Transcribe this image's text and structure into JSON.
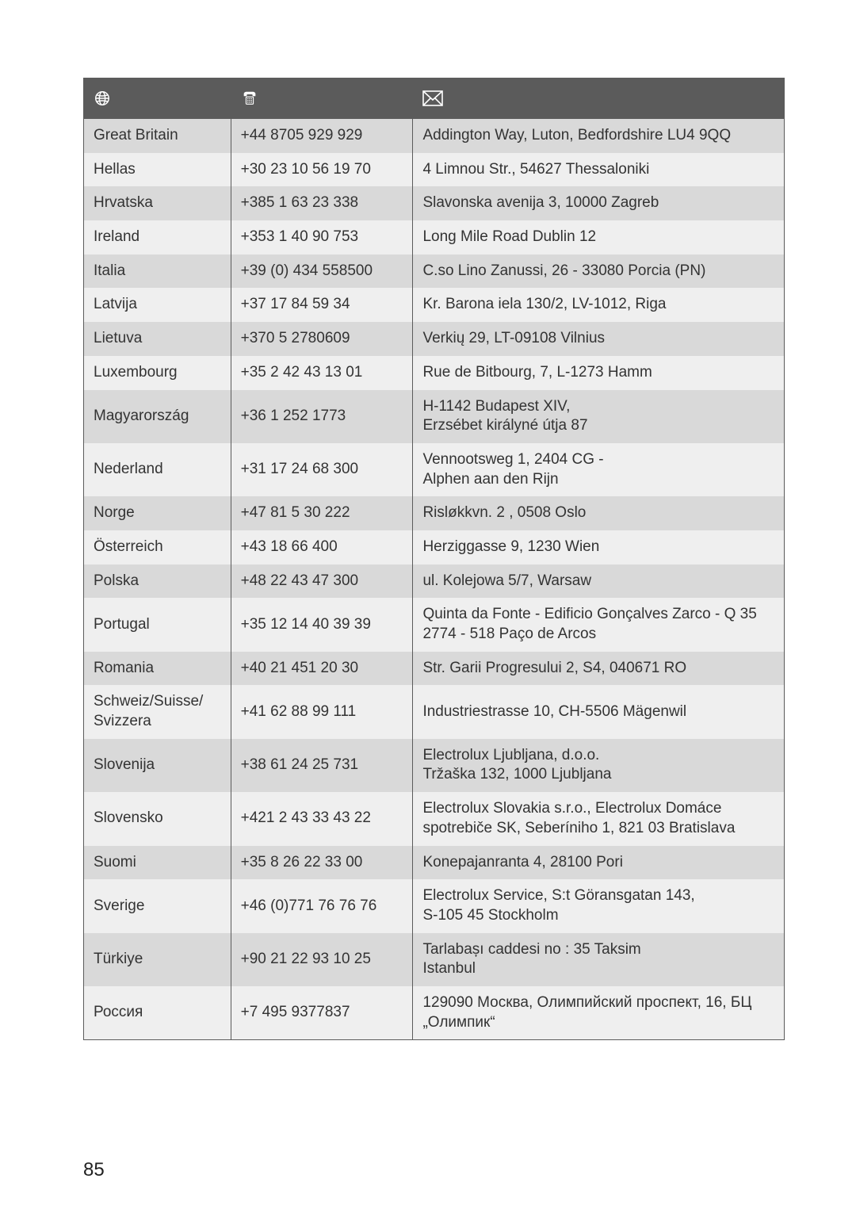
{
  "page_number": "85",
  "colors": {
    "header_bg": "#5b5b5b",
    "header_fg": "#ffffff",
    "row_odd": "#d9d9d9",
    "row_even": "#efefef",
    "text": "#333333",
    "border": "#5b5b5b"
  },
  "header_icons": [
    "globe",
    "phone",
    "envelope"
  ],
  "rows": [
    {
      "country": "Great Britain",
      "phone": "+44 8705 929 929",
      "address": "Addington Way, Luton, Bedfordshire LU4 9QQ"
    },
    {
      "country": "Hellas",
      "phone": "+30 23 10 56 19 70",
      "address": "4 Limnou Str., 54627 Thessaloniki"
    },
    {
      "country": "Hrvatska",
      "phone": "+385 1 63 23 338",
      "address": "Slavonska avenija 3, 10000 Zagreb"
    },
    {
      "country": "Ireland",
      "phone": "+353 1 40 90 753",
      "address": "Long Mile Road Dublin 12"
    },
    {
      "country": "Italia",
      "phone": "+39 (0) 434 558500",
      "address": "C.so Lino Zanussi, 26 - 33080 Porcia (PN)"
    },
    {
      "country": "Latvija",
      "phone": "+37 17 84 59 34",
      "address": "Kr. Barona iela 130/2, LV-1012, Riga"
    },
    {
      "country": "Lietuva",
      "phone": "+370 5 2780609",
      "address": "Verkių 29, LT-09108 Vilnius"
    },
    {
      "country": "Luxembourg",
      "phone": "+35 2 42 43 13 01",
      "address": "Rue de Bitbourg, 7, L-1273 Hamm"
    },
    {
      "country": "Magyarország",
      "phone": "+36 1 252 1773",
      "address": "H-1142 Budapest XIV,\nErzsébet királyné útja 87"
    },
    {
      "country": "Nederland",
      "phone": "+31 17 24 68 300",
      "address": "Vennootsweg 1, 2404 CG -\nAlphen aan den Rijn"
    },
    {
      "country": "Norge",
      "phone": "+47 81 5 30 222",
      "address": "Risløkkvn. 2 , 0508 Oslo"
    },
    {
      "country": "Österreich",
      "phone": "+43 18 66 400",
      "address": "Herziggasse 9, 1230 Wien"
    },
    {
      "country": "Polska",
      "phone": "+48 22 43 47 300",
      "address": "ul. Kolejowa 5/7, Warsaw"
    },
    {
      "country": "Portugal",
      "phone": "+35 12 14 40 39 39",
      "address": "Quinta da Fonte - Edificio Gonçalves Zarco - Q 35\n2774 - 518 Paço de Arcos"
    },
    {
      "country": "Romania",
      "phone": "+40 21 451 20 30",
      "address": "Str. Garii Progresului 2, S4, 040671 RO"
    },
    {
      "country": "Schweiz/Suisse/\nSvizzera",
      "phone": "+41 62 88 99 111",
      "address": "Industriestrasse 10, CH-5506 Mägenwil"
    },
    {
      "country": "Slovenija",
      "phone": "+38 61 24 25 731",
      "address": "Electrolux Ljubljana, d.o.o.\nTržaška 132, 1000 Ljubljana"
    },
    {
      "country": "Slovensko",
      "phone": "+421 2 43 33 43 22",
      "address": "Electrolux Slovakia s.r.o., Electrolux Domáce spotrebiče SK, Seberíniho 1, 821 03 Bratislava"
    },
    {
      "country": "Suomi",
      "phone": "+35 8 26 22 33 00",
      "address": "Konepajanranta 4, 28100 Pori"
    },
    {
      "country": "Sverige",
      "phone": "+46 (0)771 76 76 76",
      "address": "Electrolux Service, S:t Göransgatan 143,\nS-105 45  Stockholm"
    },
    {
      "country": "Türkiye",
      "phone": "+90 21 22 93 10 25",
      "address": "Tarlabașı caddesi no : 35 Taksim\nIstanbul"
    },
    {
      "country": "Россия",
      "phone": "+7 495 9377837",
      "address": "129090 Москва, Олимпийский проспект, 16, БЦ „Олимпик“"
    }
  ]
}
